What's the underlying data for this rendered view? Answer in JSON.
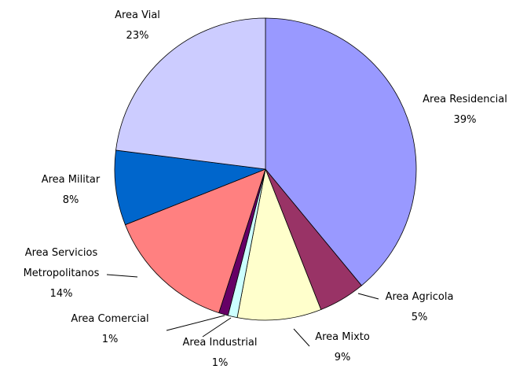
{
  "chart_data": {
    "type": "pie",
    "categories": [
      "Area Residencial",
      "Area Agricola",
      "Area Mixto",
      "Area Industrial",
      "Area Comercial",
      "Area Servicios Metropolitanos",
      "Area Militar",
      "Area Vial"
    ],
    "values": [
      39,
      5,
      9,
      1,
      1,
      14,
      8,
      23
    ],
    "value_labels": [
      "39%",
      "5%",
      "9%",
      "1%",
      "1%",
      "14%",
      "8%",
      "23%"
    ],
    "colors": [
      "#9999ff",
      "#993366",
      "#ffffcc",
      "#ccffff",
      "#660066",
      "#ff8080",
      "#0066cc",
      "#ccccff"
    ],
    "annotation": "0"
  }
}
